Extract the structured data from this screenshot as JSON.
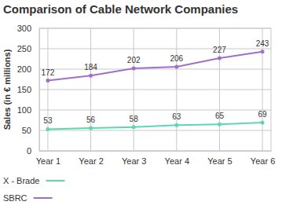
{
  "chart_data": {
    "type": "line",
    "title": "Comparison of Cable Network Companies",
    "y_label": "Sales (in € millions)",
    "categories": [
      "Year 1",
      "Year 2",
      "Year 3",
      "Year 4",
      "Year 5",
      "Year 6"
    ],
    "series": [
      {
        "name": "X - Brade",
        "color": "#5dd6b6",
        "values": [
          53,
          56,
          58,
          63,
          65,
          69
        ]
      },
      {
        "name": "SBRC",
        "color": "#a070c8",
        "values": [
          172,
          184,
          202,
          206,
          227,
          243
        ]
      }
    ],
    "ylim": [
      0,
      300
    ],
    "yticks": [
      0,
      50,
      100,
      150,
      200,
      250,
      300
    ],
    "grid": true,
    "data_labels": true,
    "legend": "bottom-left",
    "marker": "circle"
  }
}
